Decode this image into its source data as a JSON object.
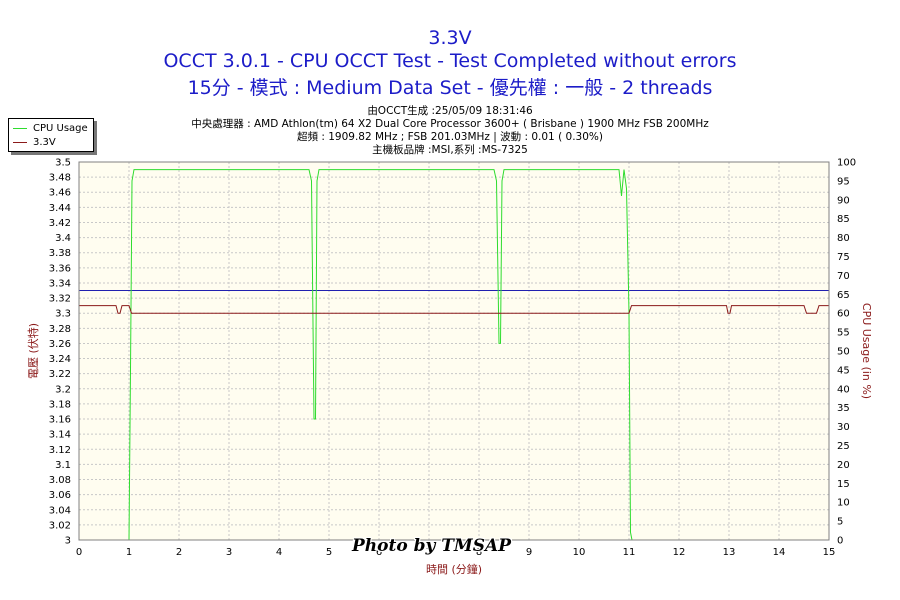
{
  "header": {
    "title": "3.3V",
    "subtitle_line1": "OCCT 3.0.1 - CPU OCCT Test - Test Completed without errors",
    "subtitle_line2": "15分 - 模式 : Medium Data Set - 優先權 : 一般 - 2 threads",
    "info_lines": [
      "由OCCT生成 :25/05/09 18:31:46",
      "中央處理器 : AMD Athlon(tm) 64 X2 Dual Core Processor 3600+ ( Brisbane ) 1900 MHz FSB 200MHz",
      "超頻 : 1909.82 MHz ; FSB 201.03MHz | 波動 : 0.01 ( 0.30%)",
      "主機板品牌 :MSI,系列 :MS-7325"
    ]
  },
  "watermark": "Photo by TMSAP",
  "colors": {
    "plot_bg": "#fffdf0",
    "grid": "#c8c8c8",
    "cpu_usage": "#2edc2e",
    "voltage": "#8b1a1a",
    "reference": "#2020b0",
    "left_axis_label": "#8b1a1a",
    "right_axis_label": "#8b1a1a",
    "x_axis_label": "#8b1a1a"
  },
  "chart_data": {
    "type": "line",
    "xlabel": "時間 (分鐘)",
    "ylabel": "電壓 (伏特)",
    "y2label": "CPU Usage (in %)",
    "xlim": [
      0,
      15
    ],
    "ylim": [
      3.0,
      3.5
    ],
    "y2lim": [
      0,
      100
    ],
    "x_ticks": [
      "0",
      "1",
      "2",
      "3",
      "4",
      "5",
      "6",
      "7",
      "8",
      "9",
      "10",
      "11",
      "12",
      "13",
      "14",
      "15"
    ],
    "y_ticks": [
      "3",
      "3.02",
      "3.04",
      "3.06",
      "3.08",
      "3.1",
      "3.12",
      "3.14",
      "3.16",
      "3.18",
      "3.2",
      "3.22",
      "3.24",
      "3.26",
      "3.28",
      "3.3",
      "3.32",
      "3.34",
      "3.36",
      "3.38",
      "3.4",
      "3.42",
      "3.44",
      "3.46",
      "3.48",
      "3.5"
    ],
    "y2_ticks": [
      "0",
      "5",
      "10",
      "15",
      "20",
      "25",
      "30",
      "35",
      "40",
      "45",
      "50",
      "55",
      "60",
      "65",
      "70",
      "75",
      "80",
      "85",
      "90",
      "95",
      "100"
    ],
    "grid": true,
    "legend_position": "top-left",
    "series": [
      {
        "name": "CPU Usage",
        "axis": "right",
        "x": [
          0.98,
          1.0,
          1.03,
          1.06,
          1.1,
          1.2,
          2.0,
          3.0,
          4.0,
          4.6,
          4.65,
          4.7,
          4.73,
          4.76,
          4.8,
          5.0,
          6.0,
          7.0,
          8.0,
          8.3,
          8.35,
          8.4,
          8.43,
          8.46,
          8.5,
          9.0,
          10.0,
          10.8,
          10.85,
          10.9,
          10.95,
          11.0,
          11.03,
          11.06,
          11.1
        ],
        "y": [
          0,
          0,
          45,
          95,
          98,
          98,
          98,
          98,
          98,
          98,
          95,
          32,
          32,
          95,
          98,
          98,
          98,
          98,
          98,
          98,
          95,
          52,
          52,
          95,
          98,
          98,
          98,
          98,
          91,
          98,
          93,
          60,
          2,
          0,
          0
        ]
      },
      {
        "name": "3.3V",
        "axis": "left",
        "x": [
          0,
          0.74,
          0.78,
          0.82,
          0.86,
          0.95,
          1.0,
          1.05,
          1.1,
          11.0,
          11.05,
          11.1,
          12.95,
          12.98,
          13.02,
          13.05,
          14.5,
          14.55,
          14.75,
          14.8,
          15.0
        ],
        "y": [
          3.31,
          3.31,
          3.3,
          3.3,
          3.31,
          3.31,
          3.31,
          3.3,
          3.3,
          3.3,
          3.31,
          3.31,
          3.31,
          3.3,
          3.3,
          3.31,
          3.31,
          3.3,
          3.3,
          3.31,
          3.31
        ]
      }
    ],
    "reference_lines": [
      {
        "axis": "left",
        "y": 3.33
      }
    ]
  }
}
